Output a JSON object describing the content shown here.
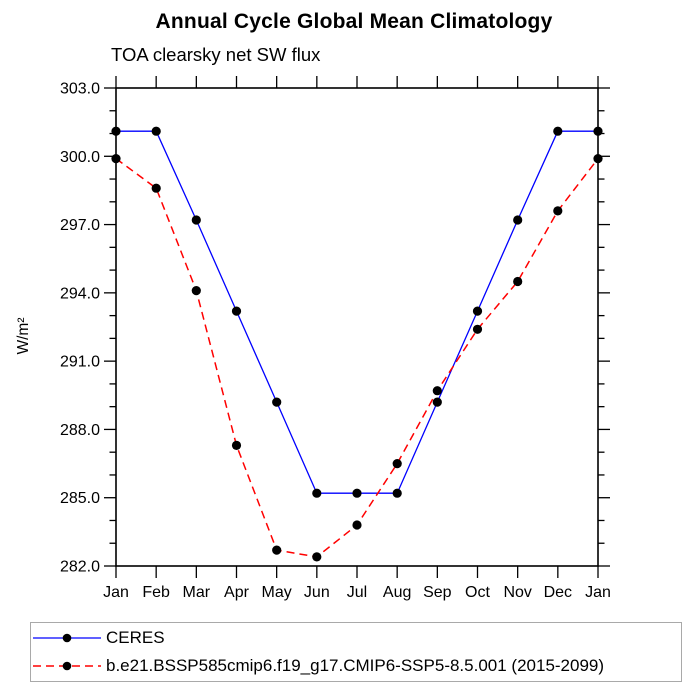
{
  "title": "Annual Cycle Global Mean Climatology",
  "subtitle": "TOA clearsky net SW flux",
  "ylabel": "W/m²",
  "chart_data": {
    "type": "line",
    "x_categories": [
      "Jan",
      "Feb",
      "Mar",
      "Apr",
      "May",
      "Jun",
      "Jul",
      "Aug",
      "Sep",
      "Oct",
      "Nov",
      "Dec",
      "Jan"
    ],
    "xlabel": "",
    "ylabel": "W/m²",
    "ylim": [
      282.0,
      303.0
    ],
    "ytick_major_interval": 3.0,
    "ytick_minor_interval": 1.0,
    "ytick_labels": [
      "282.0",
      "285.0",
      "288.0",
      "291.0",
      "294.0",
      "297.0",
      "300.0",
      "303.0"
    ],
    "grid": false,
    "legend_position": "bottom",
    "series": [
      {
        "name": "CERES",
        "color": "#0000ff",
        "line_style": "solid",
        "marker": "black-dot",
        "values": [
          301.1,
          301.1,
          297.2,
          293.2,
          289.2,
          285.2,
          285.2,
          285.2,
          289.2,
          293.2,
          297.2,
          301.1,
          301.1
        ]
      },
      {
        "name": "b.e21.BSSP585cmip6.f19_g17.CMIP6-SSP5-8.5.001 (2015-2099)",
        "color": "#ff0000",
        "line_style": "dashed",
        "marker": "black-dot",
        "values": [
          299.9,
          298.6,
          294.1,
          287.3,
          282.7,
          282.4,
          283.8,
          286.5,
          289.7,
          292.4,
          294.5,
          297.6,
          299.9
        ]
      }
    ]
  },
  "colors": {
    "marker": "#000000",
    "axis": "#000000",
    "legend_border": "#a9a9a9"
  }
}
